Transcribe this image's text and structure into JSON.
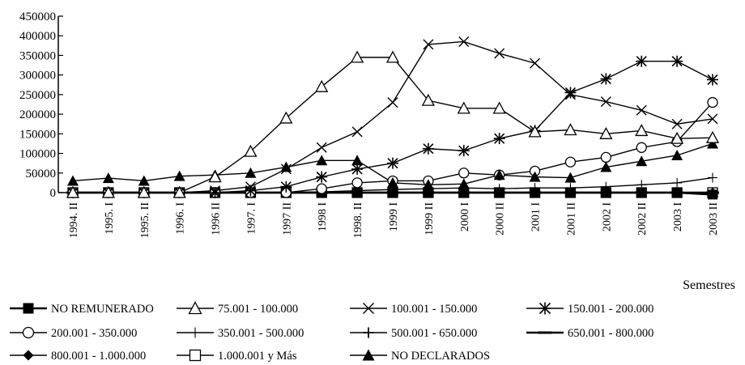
{
  "chart_data": {
    "type": "line",
    "xlabel": "Semestres",
    "ylabel": "",
    "ylim": [
      0,
      450000
    ],
    "y_ticks": [
      0,
      50000,
      100000,
      150000,
      200000,
      250000,
      300000,
      350000,
      400000,
      450000
    ],
    "y_tick_labels": [
      "0",
      "50000",
      "100000",
      "150000",
      "200000",
      "250000",
      "300000",
      "350000",
      "400000",
      "450000"
    ],
    "grid": false,
    "legend_position": "bottom",
    "categories": [
      "1994. II",
      "1995. I",
      "1995. II",
      "1996. I",
      "1996 II",
      "1997. I",
      "1997 II",
      "1998 I",
      "1998. II",
      "1999 I",
      "1999 II",
      "2000 I",
      "2000 II",
      "2001 I",
      "2001 II",
      "2002 I",
      "2002 II",
      "2003 I",
      "2003 II"
    ],
    "series": [
      {
        "name": "NO REMUNERADO",
        "marker": "square-filled",
        "values": [
          0,
          0,
          0,
          0,
          0,
          0,
          0,
          0,
          0,
          0,
          0,
          0,
          0,
          0,
          0,
          0,
          0,
          0,
          -5000
        ]
      },
      {
        "name": "75.001  -   100.000",
        "marker": "triangle-open",
        "values": [
          0,
          0,
          0,
          0,
          40000,
          105000,
          190000,
          270000,
          345000,
          345000,
          235000,
          215000,
          215000,
          155000,
          160000,
          150000,
          158000,
          138000,
          140000
        ]
      },
      {
        "name": "100.001  -   150.000",
        "marker": "x",
        "values": [
          0,
          0,
          0,
          0,
          5000,
          15000,
          60000,
          115000,
          155000,
          230000,
          378000,
          385000,
          355000,
          330000,
          250000,
          232000,
          210000,
          175000,
          188000
        ]
      },
      {
        "name": "150.001  -   200.000",
        "marker": "star",
        "values": [
          0,
          0,
          0,
          0,
          0,
          5000,
          15000,
          40000,
          60000,
          75000,
          112000,
          107000,
          138000,
          158000,
          255000,
          290000,
          335000,
          335000,
          288000
        ]
      },
      {
        "name": "200.001  -   350.000",
        "marker": "circle-open",
        "values": [
          0,
          0,
          0,
          0,
          0,
          0,
          0,
          10000,
          25000,
          30000,
          30000,
          50000,
          45000,
          55000,
          78000,
          90000,
          115000,
          130000,
          230000
        ]
      },
      {
        "name": "350.001  -   500.000",
        "marker": "plus-thin",
        "values": [
          0,
          0,
          0,
          0,
          0,
          0,
          0,
          2000,
          5000,
          8000,
          10000,
          12000,
          10000,
          12000,
          12000,
          15000,
          20000,
          25000,
          38000
        ]
      },
      {
        "name": "500.001  -   650.000",
        "marker": "plus",
        "values": [
          0,
          0,
          0,
          0,
          0,
          0,
          0,
          0,
          0,
          0,
          0,
          0,
          0,
          0,
          0,
          0,
          0,
          0,
          0
        ]
      },
      {
        "name": "650.001  -   800.000",
        "marker": "dash",
        "values": [
          0,
          0,
          0,
          0,
          0,
          0,
          0,
          0,
          0,
          0,
          0,
          0,
          0,
          0,
          0,
          0,
          0,
          0,
          0
        ]
      },
      {
        "name": "800.001  -  1.000.000",
        "marker": "diamond-filled",
        "values": [
          0,
          0,
          0,
          0,
          0,
          0,
          0,
          0,
          0,
          0,
          0,
          0,
          0,
          0,
          0,
          0,
          0,
          0,
          0
        ]
      },
      {
        "name": "1.000.001  y Más",
        "marker": "square-open",
        "values": [
          0,
          0,
          0,
          0,
          0,
          0,
          0,
          0,
          0,
          0,
          0,
          0,
          0,
          0,
          0,
          0,
          0,
          0,
          0
        ]
      },
      {
        "name": "NO DECLARADOS",
        "marker": "triangle-filled",
        "values": [
          30000,
          37000,
          30000,
          42000,
          45000,
          50000,
          65000,
          82000,
          82000,
          25000,
          20000,
          22000,
          45000,
          40000,
          38000,
          65000,
          80000,
          95000,
          125000
        ]
      }
    ]
  }
}
